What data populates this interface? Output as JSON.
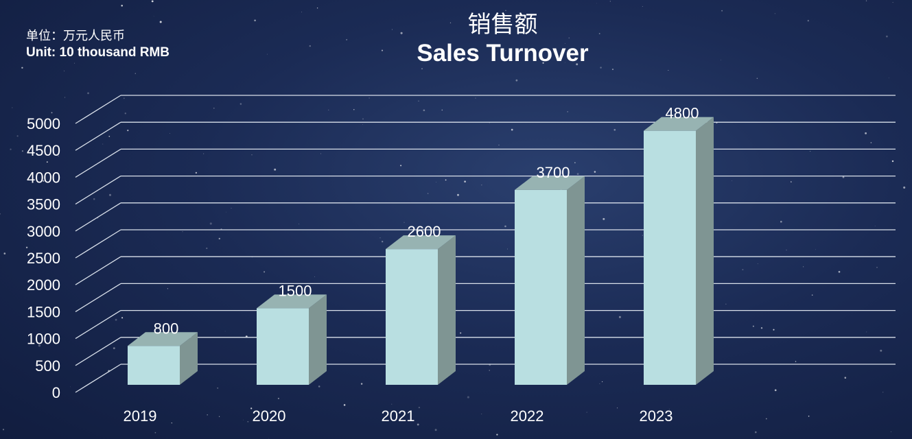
{
  "header": {
    "unit_cn": "单位：万元人民币",
    "unit_en": "Unit: 10 thousand RMB",
    "title_cn": "销售额",
    "title_en": "Sales Turnover"
  },
  "chart_data": {
    "type": "bar",
    "title": "销售额 Sales Turnover",
    "categories": [
      "2019",
      "2020",
      "2021",
      "2022",
      "2023"
    ],
    "values": [
      800,
      1500,
      2600,
      3700,
      4800
    ],
    "ylim": [
      0,
      5000
    ],
    "yticks": [
      0,
      500,
      1000,
      1500,
      2000,
      2500,
      3000,
      3500,
      4000,
      4500,
      5000
    ],
    "grid": true,
    "data_labels": true,
    "colors": {
      "bar_front": "#b9dfe1",
      "bar_top": "#97b3b2",
      "bar_side": "#7f9593",
      "grid": "#d9e0ea"
    }
  }
}
